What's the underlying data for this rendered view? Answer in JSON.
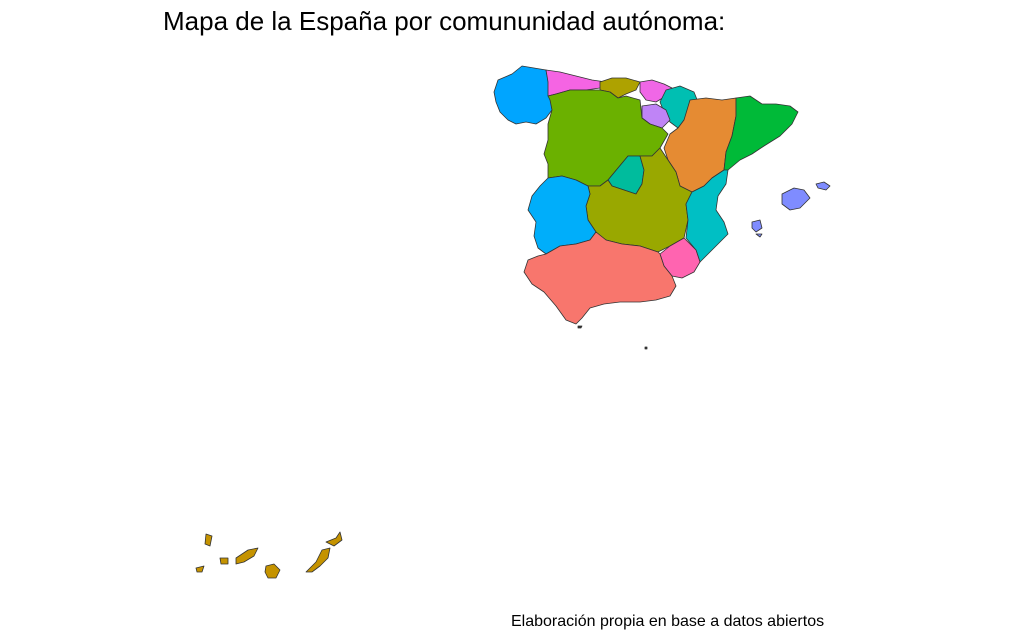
{
  "title": "Mapa de la España por comununidad autónoma:",
  "caption": "Elaboración propia en base a datos abiertos",
  "regions": [
    {
      "name": "Andalucía",
      "color": "#F8766D"
    },
    {
      "name": "Aragón",
      "color": "#E58B33"
    },
    {
      "name": "Principado de Asturias",
      "color": "#F564E3"
    },
    {
      "name": "Illes Balears",
      "color": "#7F8CFF"
    },
    {
      "name": "Canarias",
      "color": "#C59300"
    },
    {
      "name": "Cantabria",
      "color": "#AEA200"
    },
    {
      "name": "Castilla y León",
      "color": "#6BB100"
    },
    {
      "name": "Castilla-La Mancha",
      "color": "#99A800"
    },
    {
      "name": "Cataluña",
      "color": "#00BA38"
    },
    {
      "name": "Comunitat Valenciana",
      "color": "#00BFC4"
    },
    {
      "name": "Extremadura",
      "color": "#00AEFA"
    },
    {
      "name": "Galicia",
      "color": "#00A5FF"
    },
    {
      "name": "Comunidad de Madrid",
      "color": "#00BC9D"
    },
    {
      "name": "Región de Murcia",
      "color": "#FF64B0"
    },
    {
      "name": "Comunidad Foral de Navarra",
      "color": "#00BFB2"
    },
    {
      "name": "País Vasco",
      "color": "#F067E6"
    },
    {
      "name": "La Rioja",
      "color": "#BF84F6"
    },
    {
      "name": "Ceuta y Melilla",
      "color": "#333333"
    }
  ]
}
